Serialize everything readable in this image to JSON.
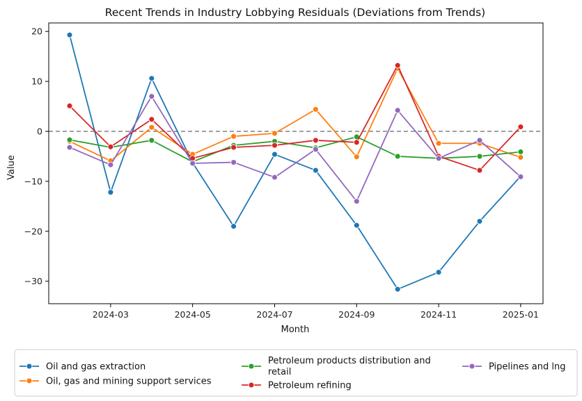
{
  "chart_data": {
    "type": "line",
    "title": "Recent Trends in Industry Lobbying Residuals (Deviations from Trends)",
    "xlabel": "Month",
    "ylabel": "Value",
    "x": [
      "2024-02",
      "2024-03",
      "2024-04",
      "2024-05",
      "2024-06",
      "2024-07",
      "2024-08",
      "2024-09",
      "2024-10",
      "2024-11",
      "2024-12",
      "2025-01"
    ],
    "x_ticks": [
      "2024-03",
      "2024-05",
      "2024-07",
      "2024-09",
      "2024-11",
      "2025-01"
    ],
    "y_ticks": [
      20,
      10,
      0,
      -10,
      -20,
      -30
    ],
    "ylim": [
      -34.5,
      21.7
    ],
    "reference_line": {
      "y": 0,
      "style": "dashed",
      "color": "#808080"
    },
    "legend_position": "bottom",
    "series": [
      {
        "name": "Oil and gas extraction",
        "color": "#1f77b4",
        "values": [
          19.3,
          -12.2,
          10.6,
          -6.3,
          -19.0,
          -4.6,
          -7.8,
          -18.8,
          -31.6,
          -28.2,
          -18.0,
          -9.0
        ]
      },
      {
        "name": "Oil, gas and mining support services",
        "color": "#ff7f0e",
        "values": [
          -2.0,
          -5.9,
          0.8,
          -4.6,
          -1.0,
          -0.4,
          4.4,
          -5.1,
          12.6,
          -2.4,
          -2.4,
          -5.2
        ]
      },
      {
        "name": "Petroleum products distribution and retail",
        "color": "#2ca02c",
        "values": [
          -1.7,
          -3.2,
          -1.8,
          -6.1,
          -2.8,
          -2.0,
          -3.3,
          -1.1,
          -5.0,
          -5.4,
          -5.0,
          -4.1
        ]
      },
      {
        "name": "Petroleum refining",
        "color": "#d62728",
        "values": [
          5.1,
          -3.1,
          2.4,
          -5.4,
          -3.2,
          -2.8,
          -1.8,
          -2.2,
          13.2,
          -5.0,
          -7.8,
          0.9
        ]
      },
      {
        "name": "Pipelines and lng",
        "color": "#9467bd",
        "values": [
          -3.2,
          -6.7,
          7.0,
          -6.4,
          -6.2,
          -9.2,
          -3.6,
          -14.0,
          4.2,
          -5.4,
          -1.8,
          -9.1
        ]
      }
    ]
  }
}
